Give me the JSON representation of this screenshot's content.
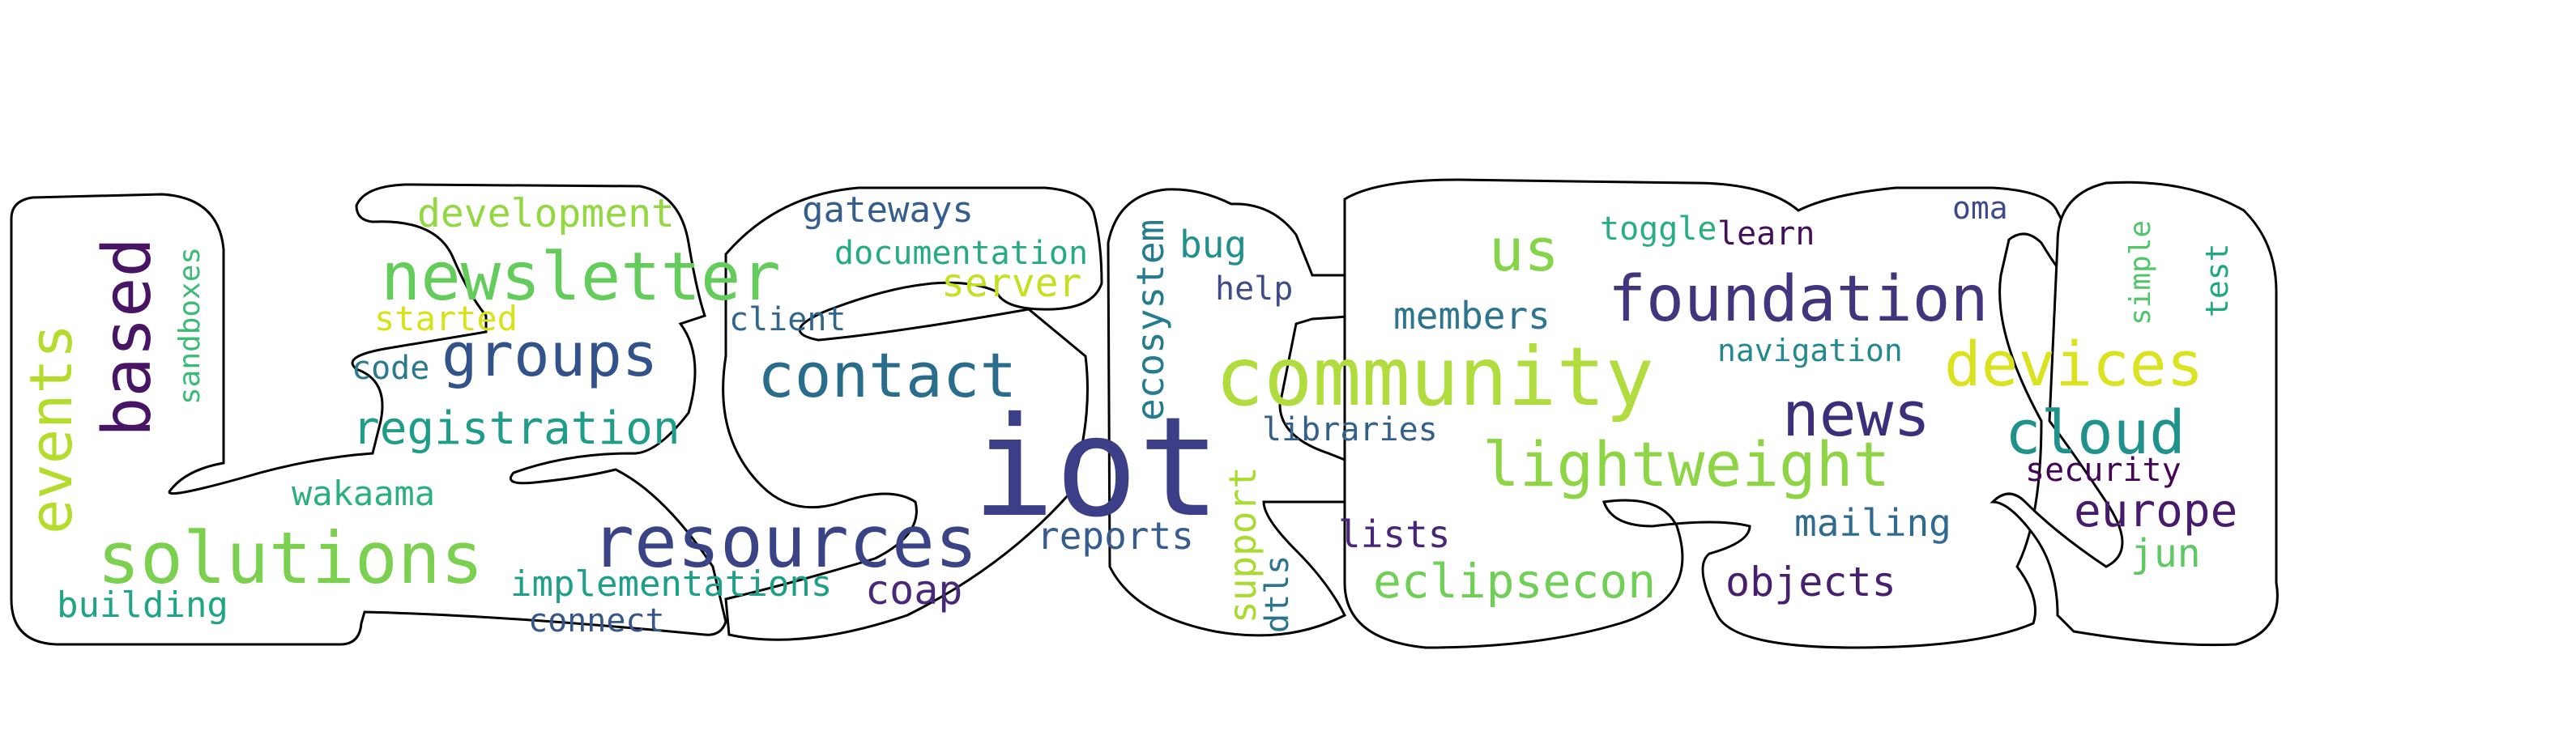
{
  "title": "",
  "words": [
    {
      "text": "iot",
      "color": "#3c3f87"
    },
    {
      "text": "community",
      "color": "#b1dc3e"
    },
    {
      "text": "solutions",
      "color": "#7bd14f"
    },
    {
      "text": "resources",
      "color": "#3a4386"
    },
    {
      "text": "newsletter",
      "color": "#64cc5b"
    },
    {
      "text": "foundation",
      "color": "#43347e"
    },
    {
      "text": "lightweight",
      "color": "#8dd545"
    },
    {
      "text": "contact",
      "color": "#2a6c8c"
    },
    {
      "text": "devices",
      "color": "#dbe220"
    },
    {
      "text": "groups",
      "color": "#32528b"
    },
    {
      "text": "based",
      "color": "#471564"
    },
    {
      "text": "news",
      "color": "#3b2f7c"
    },
    {
      "text": "cloud",
      "color": "#20928c"
    },
    {
      "text": "events",
      "color": "#b3dc2c"
    },
    {
      "text": "registration",
      "color": "#1f9d89"
    },
    {
      "text": "eclipsecon",
      "color": "#70cf56"
    },
    {
      "text": "us",
      "color": "#86d449"
    },
    {
      "text": "ecosystem",
      "color": "#267c8e"
    },
    {
      "text": "europe",
      "color": "#481a6d"
    },
    {
      "text": "development",
      "color": "#93d741"
    },
    {
      "text": "support",
      "color": "#a9db33"
    },
    {
      "text": "objects",
      "color": "#471f6e"
    },
    {
      "text": "reports",
      "color": "#365d8d"
    },
    {
      "text": "members",
      "color": "#2d758e"
    },
    {
      "text": "mailing",
      "color": "#306a8e"
    },
    {
      "text": "coap",
      "color": "#482979"
    },
    {
      "text": "gateways",
      "color": "#355e8d"
    },
    {
      "text": "implementations",
      "color": "#1ea088"
    },
    {
      "text": "server",
      "color": "#c5e021"
    },
    {
      "text": "lists",
      "color": "#482576"
    },
    {
      "text": "wakaama",
      "color": "#2ab07f"
    },
    {
      "text": "building",
      "color": "#20a486"
    },
    {
      "text": "jun",
      "color": "#5ec962"
    },
    {
      "text": "bug",
      "color": "#21908c"
    },
    {
      "text": "documentation",
      "color": "#25ab82"
    },
    {
      "text": "navigation",
      "color": "#23898e"
    },
    {
      "text": "toggle",
      "color": "#29af7f"
    },
    {
      "text": "learn",
      "color": "#440f5a"
    },
    {
      "text": "libraries",
      "color": "#34608d"
    },
    {
      "text": "client",
      "color": "#31658e"
    },
    {
      "text": "connect",
      "color": "#37578c"
    },
    {
      "text": "dtls",
      "color": "#2b748e"
    },
    {
      "text": "code",
      "color": "#297a8e"
    },
    {
      "text": "started",
      "color": "#d8e219"
    },
    {
      "text": "help",
      "color": "#3e4c8a"
    },
    {
      "text": "security",
      "color": "#450457"
    },
    {
      "text": "oma",
      "color": "#3e4a89"
    },
    {
      "text": "sandboxes",
      "color": "#3bbb75"
    },
    {
      "text": "simple",
      "color": "#52c569"
    },
    {
      "text": "test",
      "color": "#22a785"
    }
  ]
}
